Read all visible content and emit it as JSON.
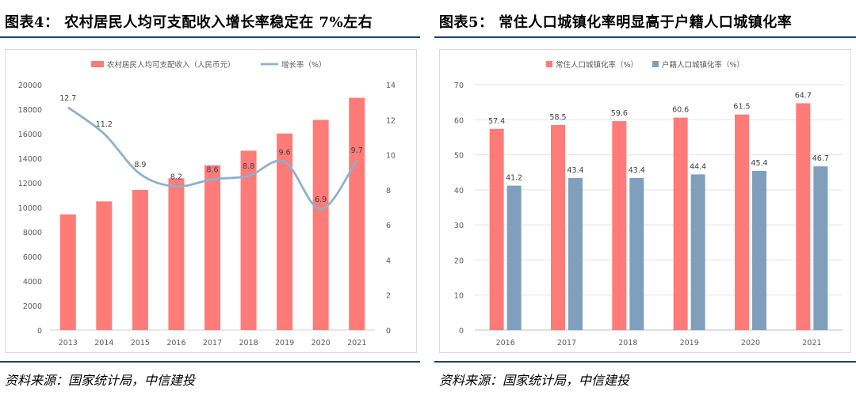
{
  "colors": {
    "bar_red": "#ff7b78",
    "bar_blue": "#7f9fbc",
    "line_blue": "#8fb0cc",
    "rule": "#1f3f6e"
  },
  "left": {
    "title": "图表4：  农村居民人均可支配收入增长率稳定在 7%左右",
    "source": "资料来源：国家统计局，中信建投",
    "chart_data": {
      "type": "bar+line",
      "categories": [
        "2013",
        "2014",
        "2015",
        "2016",
        "2017",
        "2018",
        "2019",
        "2020",
        "2021"
      ],
      "series": [
        {
          "name": "农村居民人均可支配收入（人民币元）",
          "type": "bar",
          "axis": "left",
          "values": [
            9430,
            10489,
            11422,
            12363,
            13432,
            14617,
            16021,
            17131,
            18931
          ]
        },
        {
          "name": "增长率（%）",
          "type": "line",
          "axis": "right",
          "values": [
            12.7,
            11.2,
            8.9,
            8.2,
            8.6,
            8.8,
            9.6,
            6.9,
            9.7
          ],
          "labels": [
            "12.7",
            "11.2",
            "8.9",
            "8.2",
            "8.6",
            "8.8",
            "9.6",
            "6.9",
            "9.7"
          ]
        }
      ],
      "ylim_left": [
        0,
        20000
      ],
      "yticks_left": [
        "0",
        "2000",
        "4000",
        "6000",
        "8000",
        "10000",
        "12000",
        "14000",
        "16000",
        "18000",
        "20000"
      ],
      "ylim_right": [
        0,
        14
      ],
      "yticks_right": [
        "0",
        "2",
        "4",
        "6",
        "8",
        "10",
        "12",
        "14"
      ],
      "legend_position": "top"
    }
  },
  "right": {
    "title": "图表5：  常住人口城镇化率明显高于户籍人口城镇化率",
    "source": "资料来源：国家统计局，中信建投",
    "chart_data": {
      "type": "bar",
      "categories": [
        "2016",
        "2017",
        "2018",
        "2019",
        "2020",
        "2021"
      ],
      "series": [
        {
          "name": "常住人口城镇化率（%）",
          "values": [
            57.4,
            58.5,
            59.6,
            60.6,
            61.5,
            64.7
          ],
          "labels": [
            "57.4",
            "58.5",
            "59.6",
            "60.6",
            "61.5",
            "64.7"
          ]
        },
        {
          "name": "户籍人口城镇化率（%）",
          "values": [
            41.2,
            43.4,
            43.4,
            44.4,
            45.4,
            46.7
          ],
          "labels": [
            "41.2",
            "43.4",
            "43.4",
            "44.4",
            "45.4",
            "46.7"
          ]
        }
      ],
      "ylim": [
        0,
        70
      ],
      "yticks": [
        "0",
        "10",
        "20",
        "30",
        "40",
        "50",
        "60",
        "70"
      ],
      "legend_position": "top"
    }
  }
}
